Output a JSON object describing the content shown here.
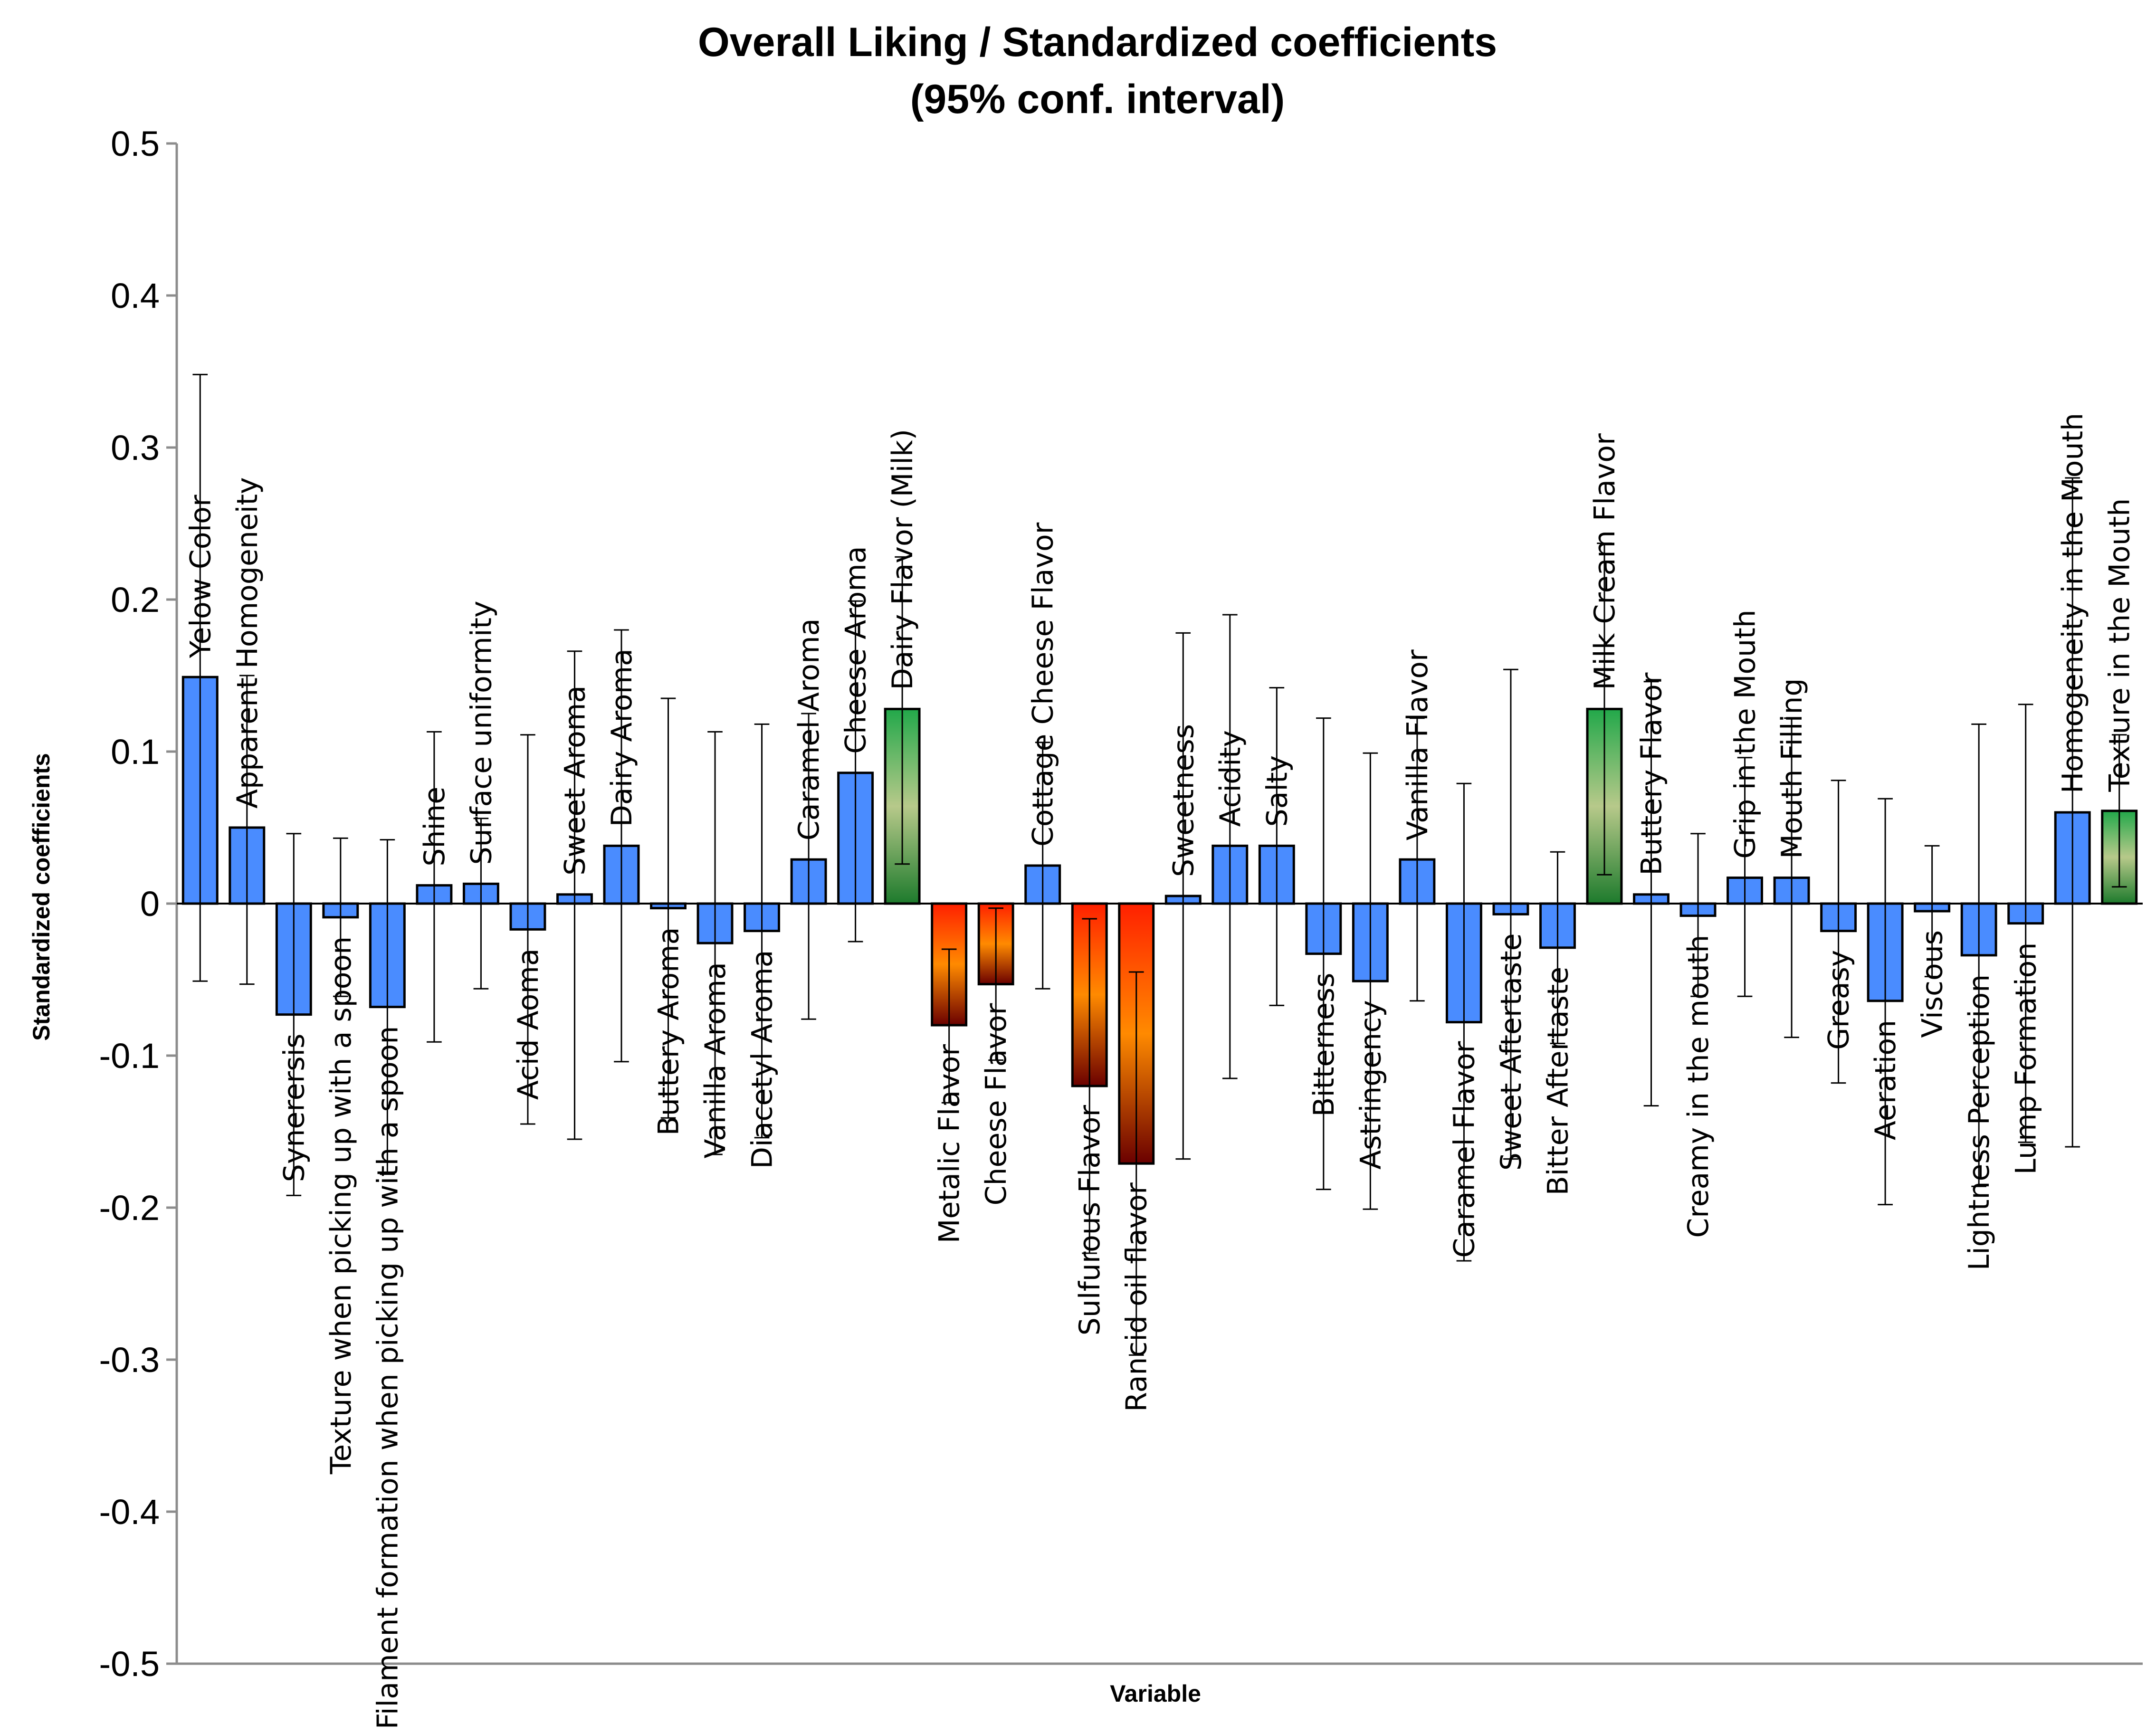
{
  "chart_data": {
    "type": "bar",
    "title": "Overall Liking / Standardized coefficients",
    "subtitle": "(95% conf. interval)",
    "xlabel": "Variable",
    "ylabel": "Standardized coefficients",
    "ylim": [
      -0.5,
      0.5
    ],
    "yticks": [
      "0.5",
      "0.4",
      "0.3",
      "0.2",
      "0.1",
      "0",
      "-0.1",
      "-0.2",
      "-0.3",
      "-0.4",
      "-0.5"
    ],
    "ytick_values": [
      0.5,
      0.4,
      0.3,
      0.2,
      0.1,
      0,
      -0.1,
      -0.2,
      -0.3,
      -0.4,
      -0.5
    ],
    "legend": "none",
    "grid": false,
    "colors": {
      "positive_default": "#4a8cff",
      "significant_positive_top": "#22a84a",
      "significant_positive_mid": "#b7c98a",
      "significant_positive_bottom": "#1d7a2c",
      "significant_negative_top": "#ff2000",
      "significant_negative_mid": "#ff8a00",
      "significant_negative_bottom": "#6a0000",
      "stroke": "#000000",
      "axis": "#8c8c8c"
    },
    "categories": [
      "Yelow Color",
      "Apparent Homogeneity",
      "Synerersis",
      "Texture when picking up with a spoon",
      "Filament formation when picking up with a spoon",
      "Shine",
      "Surface uniformity",
      "Acid Aoma",
      "Sweet Aroma",
      "Dairy Aroma",
      "Buttery Aroma",
      "Vanilla Aroma",
      "Diacetyl Aroma",
      "Caramel Aroma",
      "Cheese Aroma",
      "Dairy Flavor (Milk)",
      "Metalic Flavor",
      "Cheese Flavor",
      "Cottage Cheese Flavor",
      "Sulfurous Flavor",
      "Rancid oil flavor",
      "Sweetness",
      "Acidity",
      "Salty",
      "Bitterness",
      "Astringency",
      "Vanilla Flavor",
      "Caramel Flavor",
      "Sweet Aftertaste",
      "Bitter Aftertaste",
      "Milk Cream Flavor",
      "Buttery Flavor",
      "Creamy in the mouth",
      "Grip in the Mouth",
      "Mouth Filling",
      "Greasy",
      "Aeration",
      "Viscous",
      "Lightness Perception",
      "Lump Formation",
      "Homogeneity in the Mouth",
      "Texture in the Mouth"
    ],
    "values": [
      0.149,
      0.05,
      -0.073,
      -0.009,
      -0.068,
      0.012,
      0.013,
      -0.017,
      0.006,
      0.038,
      -0.003,
      -0.026,
      -0.018,
      0.029,
      0.086,
      0.128,
      -0.08,
      -0.053,
      0.025,
      -0.12,
      -0.171,
      0.005,
      0.038,
      0.038,
      -0.033,
      -0.051,
      0.029,
      -0.078,
      -0.007,
      -0.029,
      0.128,
      0.006,
      -0.008,
      0.017,
      0.017,
      -0.018,
      -0.064,
      -0.005,
      -0.034,
      -0.013,
      0.06,
      0.061
    ],
    "ci_upper": [
      0.348,
      0.15,
      0.046,
      0.043,
      0.042,
      0.113,
      0.056,
      0.111,
      0.166,
      0.18,
      0.135,
      0.113,
      0.118,
      0.125,
      0.199,
      0.228,
      -0.03,
      -0.003,
      0.106,
      -0.01,
      -0.045,
      0.178,
      0.19,
      0.142,
      0.122,
      0.099,
      0.122,
      0.079,
      0.154,
      0.034,
      0.237,
      0.146,
      0.046,
      0.096,
      0.122,
      0.081,
      0.069,
      0.038,
      0.118,
      0.131,
      0.28,
      0.111
    ],
    "ci_lower": [
      -0.051,
      -0.053,
      -0.192,
      -0.061,
      -0.178,
      -0.091,
      -0.056,
      -0.145,
      -0.155,
      -0.104,
      -0.141,
      -0.165,
      -0.154,
      -0.076,
      -0.025,
      0.026,
      -0.131,
      -0.103,
      -0.056,
      -0.23,
      -0.297,
      -0.168,
      -0.115,
      -0.067,
      -0.188,
      -0.201,
      -0.064,
      -0.235,
      -0.168,
      -0.092,
      0.019,
      -0.133,
      -0.061,
      -0.061,
      -0.088,
      -0.118,
      -0.198,
      -0.048,
      -0.186,
      -0.157,
      -0.16,
      0.011
    ],
    "significance": [
      "none",
      "none",
      "none",
      "none",
      "none",
      "none",
      "none",
      "none",
      "none",
      "none",
      "none",
      "none",
      "none",
      "none",
      "none",
      "positive",
      "negative",
      "negative",
      "none",
      "negative",
      "negative",
      "none",
      "none",
      "none",
      "none",
      "none",
      "none",
      "none",
      "none",
      "none",
      "positive",
      "none",
      "none",
      "none",
      "none",
      "none",
      "none",
      "none",
      "none",
      "none",
      "none",
      "positive"
    ]
  }
}
